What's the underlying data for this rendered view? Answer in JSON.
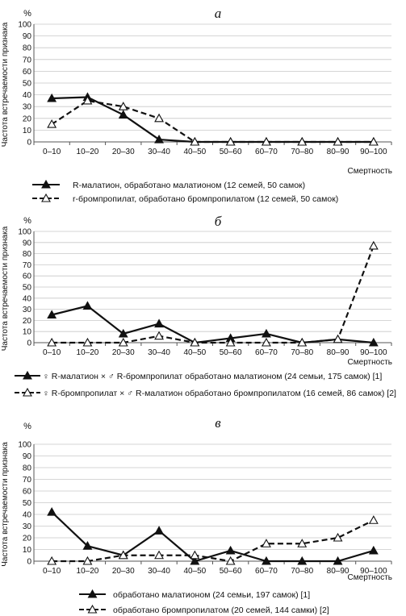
{
  "chart_data": [
    {
      "type": "line",
      "panel_label": "а",
      "y_unit": "%",
      "ylabel": "Частота встречаемости признака",
      "xlabel": "Смертность",
      "ylim": [
        0,
        100
      ],
      "y_ticks": [
        "0",
        "10",
        "20",
        "30",
        "40",
        "50",
        "60",
        "70",
        "80",
        "90",
        "100"
      ],
      "categories": [
        "0–10",
        "10–20",
        "20–30",
        "30–40",
        "40–50",
        "50–60",
        "60–70",
        "70–80",
        "80–90",
        "90–100"
      ],
      "grid": true,
      "legend_position": "bottom",
      "series": [
        {
          "name": "R-малатион, обработано малатионом (12 семей, 50 самок)",
          "style": "solid",
          "marker": "filled-triangle",
          "color": "#111111",
          "values": [
            37,
            38,
            23,
            2,
            0,
            0,
            0,
            0,
            0,
            0
          ]
        },
        {
          "name": "r-бромпропилат, обработано бромпропилатом (12 семей, 50 самок)",
          "style": "dashed",
          "marker": "open-triangle",
          "color": "#111111",
          "values": [
            15,
            35,
            30,
            20,
            0,
            0,
            0,
            0,
            0,
            0
          ]
        }
      ]
    },
    {
      "type": "line",
      "panel_label": "б",
      "y_unit": "%",
      "ylabel": "Частота встречаемости признака",
      "xlabel": "Смертность",
      "ylim": [
        0,
        100
      ],
      "y_ticks": [
        "0",
        "10",
        "20",
        "30",
        "40",
        "50",
        "60",
        "70",
        "80",
        "90",
        "100"
      ],
      "categories": [
        "0–10",
        "10–20",
        "20–30",
        "30–40",
        "40–50",
        "50–60",
        "60–70",
        "70–80",
        "80–90",
        "90–100"
      ],
      "grid": true,
      "legend_position": "bottom",
      "series": [
        {
          "name": "♀ R-малатион × ♂ R-бромпропилат обработано малатионом (24 семьи, 175 самок) [1]",
          "style": "solid",
          "marker": "filled-triangle",
          "color": "#111111",
          "values": [
            25,
            33,
            8,
            17,
            0,
            4,
            8,
            0,
            3,
            0
          ]
        },
        {
          "name": "♀ R-бромпропилат × ♂ R-малатион обработано бромпропилатом (16 семей, 86 самок) [2]",
          "style": "dashed",
          "marker": "open-triangle",
          "color": "#111111",
          "values": [
            0,
            0,
            0,
            6,
            0,
            0,
            0,
            0,
            3,
            87
          ]
        }
      ]
    },
    {
      "type": "line",
      "panel_label": "в",
      "y_unit": "%",
      "ylabel": "Частота встречаемости признака",
      "xlabel": "Смертность",
      "ylim": [
        0,
        100
      ],
      "y_ticks": [
        "0",
        "10",
        "20",
        "30",
        "40",
        "50",
        "60",
        "70",
        "80",
        "90",
        "100"
      ],
      "categories": [
        "0–10",
        "10–20",
        "20–30",
        "30–40",
        "40–50",
        "50–60",
        "60–70",
        "70–80",
        "80–90",
        "90–100"
      ],
      "grid": true,
      "legend_position": "bottom",
      "series": [
        {
          "name": "обработано малатионом (24 семьи, 197 самок) [1]",
          "style": "solid",
          "marker": "filled-triangle",
          "color": "#111111",
          "values": [
            42,
            13,
            5,
            26,
            0,
            9,
            0,
            0,
            0,
            9
          ]
        },
        {
          "name": "обработано бромпропилатом (20 семей, 144 самки) [2]",
          "style": "dashed",
          "marker": "open-triangle",
          "color": "#111111",
          "values": [
            0,
            0,
            5,
            5,
            5,
            0,
            15,
            15,
            20,
            35
          ]
        }
      ]
    }
  ]
}
